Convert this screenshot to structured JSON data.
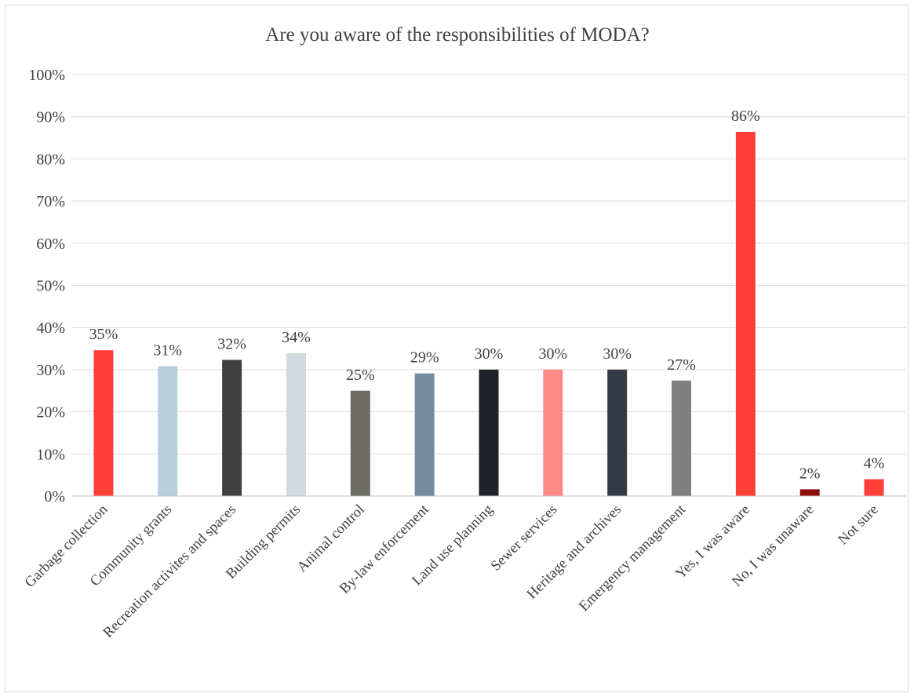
{
  "chart_data": {
    "type": "bar",
    "title": "Are you aware of the responsibilities of MODA?",
    "xlabel": "",
    "ylabel": "",
    "ylim": [
      0,
      100
    ],
    "y_ticks": [
      "0%",
      "10%",
      "20%",
      "30%",
      "40%",
      "50%",
      "60%",
      "70%",
      "80%",
      "90%",
      "100%"
    ],
    "grid": true,
    "legend": "none",
    "categories": [
      "Garbage collection",
      "Community grants",
      "Recreation activites and spaces",
      "Building permits",
      "Animal control",
      "By-law enforcement",
      "Land use planning",
      "Sewer services",
      "Heritage and archives",
      "Emergency management",
      "Yes, I was aware",
      "No, I was unaware",
      "Not sure"
    ],
    "values": [
      34.6,
      30.8,
      32.3,
      33.9,
      25,
      29.1,
      30,
      30,
      30,
      27.4,
      86.4,
      1.6,
      4
    ],
    "data_labels": [
      "35%",
      "31%",
      "32%",
      "34%",
      "25%",
      "29%",
      "30%",
      "30%",
      "30%",
      "27%",
      "86%",
      "2%",
      "4%"
    ],
    "colors": [
      "#ff3e3a",
      "#b8cfe0",
      "#404040",
      "#d2d9e0",
      "#6c6c64",
      "#758b9f",
      "#1f2329",
      "#ff8a85",
      "#323b46",
      "#7f7f7f",
      "#ff3e3a",
      "#8b0d0d",
      "#ff3e3a"
    ]
  }
}
